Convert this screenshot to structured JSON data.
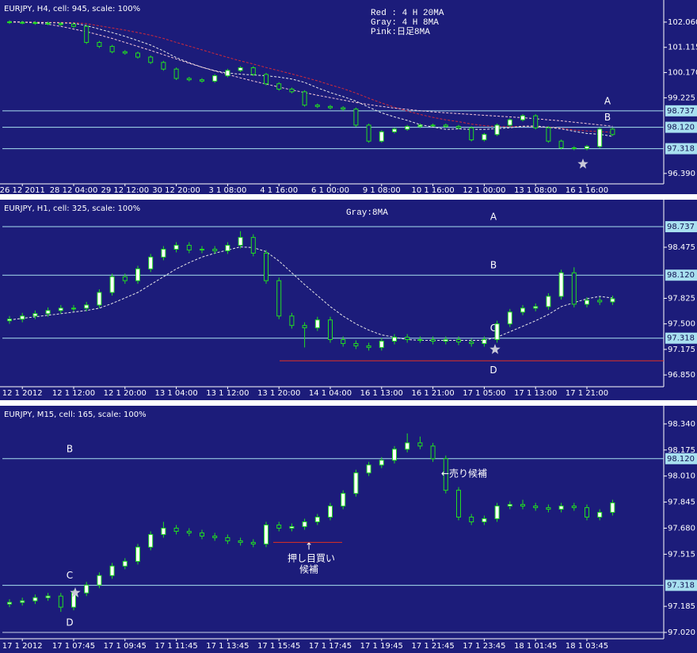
{
  "chart_data": [
    {
      "type": "candlestick",
      "title": "EURJPY, H4, cell: 945, scale: 100%",
      "background": "#1c1c7a",
      "up_color": "#ffffff",
      "down_color": "#1c1c7a",
      "wick_color": "#22dd22",
      "categories": [
        null,
        "26 12 2011",
        null,
        null,
        null,
        "28 12 04:00",
        null,
        null,
        null,
        "29 12 12:00",
        null,
        null,
        null,
        "30 12 20:00",
        null,
        null,
        null,
        "3 1 08:00",
        null,
        null,
        null,
        "4 1 16:00",
        null,
        null,
        null,
        "6 1 00:00",
        null,
        null,
        null,
        "9 1 08:00",
        null,
        null,
        null,
        "10 1 16:00",
        null,
        null,
        null,
        "12 1 00:00",
        null,
        null,
        null,
        "13 1 08:00",
        null,
        null,
        null,
        "16 1 16:00",
        null,
        null
      ],
      "open": [
        102.07,
        102.05,
        102.04,
        102.02,
        102.0,
        101.98,
        101.9,
        101.3,
        101.15,
        100.95,
        100.9,
        100.75,
        100.55,
        100.3,
        99.95,
        99.9,
        99.85,
        100.05,
        100.25,
        100.35,
        100.1,
        99.75,
        99.55,
        99.45,
        98.95,
        98.9,
        98.85,
        98.8,
        98.2,
        97.6,
        97.95,
        98.05,
        98.15,
        98.2,
        98.2,
        98.15,
        98.1,
        97.65,
        97.85,
        98.2,
        98.4,
        98.55,
        98.1,
        97.6,
        97.35,
        97.32,
        97.4,
        98.05
      ],
      "high": [
        102.13,
        102.11,
        102.1,
        102.08,
        102.06,
        102.04,
        101.96,
        101.36,
        101.21,
        101.01,
        100.96,
        100.81,
        100.61,
        100.36,
        100.01,
        99.96,
        100.11,
        100.31,
        100.41,
        100.41,
        100.16,
        99.81,
        99.61,
        99.51,
        99.01,
        98.96,
        98.91,
        98.86,
        98.26,
        98.01,
        98.11,
        98.21,
        98.26,
        98.26,
        98.26,
        98.21,
        98.16,
        97.91,
        98.26,
        98.46,
        98.61,
        98.61,
        98.16,
        97.66,
        97.41,
        97.46,
        98.11,
        98.11
      ],
      "low": [
        101.99,
        101.98,
        101.96,
        101.94,
        101.92,
        101.84,
        101.24,
        101.09,
        100.89,
        100.84,
        100.69,
        100.49,
        100.24,
        99.89,
        99.84,
        99.79,
        99.79,
        99.99,
        100.19,
        100.04,
        99.69,
        99.49,
        99.39,
        98.89,
        98.84,
        98.79,
        98.74,
        98.14,
        97.54,
        97.54,
        97.89,
        97.99,
        98.09,
        98.14,
        98.09,
        98.04,
        97.59,
        97.59,
        97.79,
        98.14,
        98.34,
        98.04,
        97.54,
        97.29,
        97.26,
        97.26,
        97.34,
        97.79
      ],
      "close": [
        102.05,
        102.04,
        102.02,
        102.0,
        101.98,
        101.9,
        101.3,
        101.15,
        100.95,
        100.9,
        100.75,
        100.55,
        100.3,
        99.95,
        99.9,
        99.85,
        100.05,
        100.25,
        100.35,
        100.1,
        99.75,
        99.55,
        99.45,
        98.95,
        98.9,
        98.85,
        98.8,
        98.2,
        97.6,
        97.95,
        98.05,
        98.15,
        98.2,
        98.2,
        98.15,
        98.1,
        97.65,
        97.85,
        98.2,
        98.4,
        98.55,
        98.1,
        97.6,
        97.35,
        97.32,
        97.4,
        98.05,
        97.85
      ],
      "series": [
        {
          "name": "Red : 4 H 20MA",
          "color": "#d02a3a",
          "values": [
            102.06,
            102.06,
            102.06,
            102.05,
            102.05,
            102.04,
            102.0,
            101.92,
            101.84,
            101.76,
            101.67,
            101.57,
            101.45,
            101.3,
            101.16,
            101.02,
            100.88,
            100.74,
            100.61,
            100.49,
            100.36,
            100.24,
            100.12,
            99.99,
            99.86,
            99.71,
            99.57,
            99.4,
            99.21,
            99.03,
            98.87,
            98.73,
            98.6,
            98.49,
            98.4,
            98.33,
            98.24,
            98.18,
            98.15,
            98.14,
            98.16,
            98.15,
            98.13,
            98.08,
            98.02,
            97.98,
            97.96,
            97.93
          ]
        },
        {
          "name": "Gray: 4 H  8MA",
          "color": "#e8e8e8",
          "values": [
            102.06,
            102.06,
            102.05,
            102.04,
            102.03,
            102.02,
            101.93,
            101.8,
            101.67,
            101.53,
            101.37,
            101.2,
            100.98,
            100.73,
            100.54,
            100.37,
            100.24,
            100.15,
            100.11,
            100.08,
            100.05,
            100.0,
            99.93,
            99.8,
            99.6,
            99.42,
            99.27,
            99.1,
            98.87,
            98.66,
            98.51,
            98.38,
            98.22,
            98.13,
            98.04,
            98.06,
            98.04,
            98.04,
            98.07,
            98.1,
            98.16,
            98.17,
            98.12,
            98.06,
            97.97,
            97.89,
            97.86,
            97.78
          ]
        },
        {
          "name": "Pink:日足8MA",
          "color": "#f4c8d8",
          "values": [
            102.08,
            102.06,
            102.03,
            101.98,
            101.9,
            101.8,
            101.7,
            101.58,
            101.45,
            101.3,
            101.15,
            101.0,
            100.84,
            100.68,
            100.52,
            100.37,
            100.23,
            100.1,
            99.97,
            99.85,
            99.74,
            99.63,
            99.52,
            99.42,
            99.32,
            99.23,
            99.14,
            99.05,
            98.97,
            98.9,
            98.84,
            98.79,
            98.74,
            98.7,
            98.66,
            98.63,
            98.6,
            98.57,
            98.54,
            98.51,
            98.48,
            98.44,
            98.4,
            98.36,
            98.31,
            98.26,
            98.21,
            98.16
          ]
        }
      ],
      "ylim": [
        96.0,
        102.8
      ],
      "yticks": [
        {
          "value": 102.06,
          "label": "102.060"
        },
        101.115,
        {
          "value": 100.17,
          "label": "100.170"
        },
        99.225,
        {
          "value": 96.39,
          "label": "96.390"
        }
      ],
      "levels": [
        {
          "value": 98.737,
          "name": "A",
          "color": "#a8e0f0",
          "boxed": true
        },
        {
          "value": 98.12,
          "label": "98.120",
          "name": "B",
          "color": "#a8e0f0",
          "boxed": true
        },
        {
          "value": 97.318,
          "color": "#a8e0f0",
          "boxed": true
        }
      ]
    },
    {
      "type": "candlestick",
      "title": "EURJPY, H1, cell: 325, scale: 100%",
      "background": "#1c1c7a",
      "up_color": "#ffffff",
      "down_color": "#1c1c7a",
      "wick_color": "#22dd22",
      "categories": [
        null,
        "12 1 2012",
        null,
        null,
        null,
        "12 1 12:00",
        null,
        null,
        null,
        "12 1 20:00",
        null,
        null,
        null,
        "13 1 04:00",
        null,
        null,
        null,
        "13 1 12:00",
        null,
        null,
        null,
        "13 1 20:00",
        null,
        null,
        null,
        "14 1 04:00",
        null,
        null,
        null,
        "16 1 13:00",
        null,
        null,
        null,
        "16 1 21:00",
        null,
        null,
        null,
        "17 1 05:00",
        null,
        null,
        null,
        "17 1 13:00",
        null,
        null,
        null,
        "17 1 21:00",
        null,
        null
      ],
      "open": [
        97.54,
        97.56,
        97.6,
        97.63,
        97.67,
        97.7,
        97.7,
        97.74,
        97.9,
        98.1,
        98.05,
        98.2,
        98.35,
        98.45,
        98.5,
        98.44,
        98.45,
        98.43,
        98.5,
        98.6,
        98.4,
        98.05,
        97.6,
        97.48,
        97.45,
        97.55,
        97.3,
        97.25,
        97.22,
        97.2,
        97.28,
        97.33,
        97.3,
        97.3,
        97.28,
        97.3,
        97.27,
        97.25,
        97.3,
        97.5,
        97.65,
        97.7,
        97.72,
        97.85,
        98.15,
        97.75,
        97.8,
        97.78
      ],
      "high": [
        97.6,
        97.64,
        97.67,
        97.71,
        97.74,
        97.74,
        97.78,
        97.94,
        98.14,
        98.14,
        98.24,
        98.39,
        98.49,
        98.54,
        98.54,
        98.49,
        98.49,
        98.54,
        98.68,
        98.64,
        98.44,
        98.09,
        97.64,
        97.52,
        97.59,
        97.59,
        97.34,
        97.29,
        97.26,
        97.32,
        97.37,
        97.37,
        97.34,
        97.34,
        97.34,
        97.34,
        97.31,
        97.34,
        97.54,
        97.69,
        97.74,
        97.76,
        97.89,
        98.19,
        98.22,
        97.84,
        97.84,
        97.86
      ],
      "low": [
        97.5,
        97.52,
        97.56,
        97.59,
        97.63,
        97.66,
        97.66,
        97.7,
        97.86,
        98.01,
        98.01,
        98.16,
        98.31,
        98.41,
        98.4,
        98.4,
        98.39,
        98.39,
        98.46,
        98.36,
        98.01,
        97.56,
        97.44,
        97.2,
        97.41,
        97.26,
        97.21,
        97.18,
        97.16,
        97.16,
        97.24,
        97.26,
        97.26,
        97.24,
        97.24,
        97.23,
        97.21,
        97.21,
        97.26,
        97.46,
        97.61,
        97.66,
        97.68,
        97.81,
        97.71,
        97.71,
        97.74,
        97.74
      ],
      "close": [
        97.56,
        97.6,
        97.63,
        97.67,
        97.7,
        97.7,
        97.74,
        97.9,
        98.1,
        98.05,
        98.2,
        98.35,
        98.45,
        98.5,
        98.44,
        98.45,
        98.43,
        98.5,
        98.6,
        98.4,
        98.05,
        97.6,
        97.48,
        97.45,
        97.55,
        97.3,
        97.25,
        97.22,
        97.2,
        97.28,
        97.33,
        97.3,
        97.3,
        97.28,
        97.3,
        97.27,
        97.25,
        97.3,
        97.5,
        97.65,
        97.7,
        97.72,
        97.85,
        98.15,
        97.75,
        97.8,
        97.78,
        97.82
      ],
      "series": [
        {
          "name": "Gray:8MA",
          "color": "#e8e8e8",
          "values": [
            97.55,
            97.57,
            97.59,
            97.61,
            97.63,
            97.65,
            97.67,
            97.7,
            97.76,
            97.83,
            97.9,
            98.0,
            98.1,
            98.2,
            98.28,
            98.35,
            98.4,
            98.44,
            98.48,
            98.47,
            98.42,
            98.3,
            98.15,
            98.0,
            97.86,
            97.72,
            97.6,
            97.5,
            97.42,
            97.36,
            97.33,
            97.3,
            97.29,
            97.29,
            97.29,
            97.29,
            97.29,
            97.29,
            97.33,
            97.4,
            97.47,
            97.54,
            97.62,
            97.72,
            97.77,
            97.82,
            97.85,
            97.83
          ]
        }
      ],
      "ylim": [
        96.7,
        99.04
      ],
      "yticks": [
        98.475,
        97.825,
        {
          "value": 97.5,
          "label": "97.500"
        },
        97.175,
        {
          "value": 96.85,
          "label": "96.850"
        }
      ],
      "levels": [
        {
          "value": 98.737,
          "name": "A",
          "color": "#a8e0f0",
          "boxed": true
        },
        {
          "value": 98.12,
          "label": "98.120",
          "name": "B",
          "color": "#a8e0f0",
          "boxed": true
        },
        {
          "value": 97.318,
          "name": "C",
          "color": "#a8e0f0",
          "boxed": true
        },
        {
          "value": 97.03,
          "name": "D",
          "color": "#e03020",
          "boxed": false
        }
      ]
    },
    {
      "type": "candlestick",
      "title": "EURJPY, M15, cell: 165, scale: 100%",
      "background": "#1c1c7a",
      "up_color": "#ffffff",
      "down_color": "#1c1c7a",
      "wick_color": "#22dd22",
      "categories": [
        null,
        "17 1 2012",
        null,
        null,
        null,
        "17 1 07:45",
        null,
        null,
        null,
        "17 1 09:45",
        null,
        null,
        null,
        "17 1 11:45",
        null,
        null,
        null,
        "17 1 13:45",
        null,
        null,
        null,
        "17 1 15:45",
        null,
        null,
        null,
        "17 1 17:45",
        null,
        null,
        null,
        "17 1 19:45",
        null,
        null,
        null,
        "17 1 21:45",
        null,
        null,
        null,
        "17 1 23:45",
        null,
        null,
        null,
        "18 1 01:45",
        null,
        null,
        null,
        "18 1 03:45",
        null,
        null
      ],
      "open": [
        97.2,
        97.21,
        97.22,
        97.24,
        97.25,
        97.18,
        97.27,
        97.32,
        97.38,
        97.44,
        97.47,
        97.56,
        97.64,
        97.68,
        97.66,
        97.65,
        97.63,
        97.62,
        97.6,
        97.59,
        97.58,
        97.7,
        97.68,
        97.69,
        97.72,
        97.75,
        97.82,
        97.9,
        98.03,
        98.08,
        98.11,
        98.18,
        98.22,
        98.2,
        98.12,
        97.92,
        97.75,
        97.72,
        97.74,
        97.82,
        97.83,
        97.82,
        97.81,
        97.8,
        97.82,
        97.81,
        97.75,
        97.78
      ],
      "high": [
        97.23,
        97.24,
        97.26,
        97.27,
        97.27,
        97.29,
        97.34,
        97.4,
        97.46,
        97.49,
        97.58,
        97.66,
        97.72,
        97.7,
        97.68,
        97.67,
        97.65,
        97.64,
        97.62,
        97.61,
        97.72,
        97.72,
        97.71,
        97.74,
        97.77,
        97.84,
        97.92,
        98.05,
        98.1,
        98.13,
        98.2,
        98.28,
        98.26,
        98.22,
        98.14,
        97.94,
        97.77,
        97.76,
        97.84,
        97.85,
        97.86,
        97.84,
        97.83,
        97.84,
        97.84,
        97.83,
        97.8,
        97.86
      ],
      "low": [
        97.18,
        97.19,
        97.2,
        97.22,
        97.15,
        97.16,
        97.25,
        97.3,
        97.36,
        97.42,
        97.45,
        97.54,
        97.62,
        97.64,
        97.63,
        97.61,
        97.6,
        97.58,
        97.57,
        97.56,
        97.56,
        97.66,
        97.66,
        97.67,
        97.7,
        97.73,
        97.8,
        97.88,
        98.01,
        98.06,
        98.09,
        98.16,
        98.18,
        98.1,
        97.9,
        97.73,
        97.7,
        97.7,
        97.72,
        97.8,
        97.8,
        97.79,
        97.78,
        97.78,
        97.79,
        97.73,
        97.73,
        97.76
      ],
      "close": [
        97.21,
        97.22,
        97.24,
        97.25,
        97.18,
        97.27,
        97.32,
        97.38,
        97.44,
        97.47,
        97.56,
        97.64,
        97.68,
        97.66,
        97.65,
        97.63,
        97.62,
        97.6,
        97.59,
        97.58,
        97.7,
        97.68,
        97.69,
        97.72,
        97.75,
        97.82,
        97.9,
        98.03,
        98.08,
        98.11,
        98.18,
        98.22,
        98.2,
        98.12,
        97.92,
        97.75,
        97.72,
        97.74,
        97.82,
        97.83,
        97.82,
        97.81,
        97.8,
        97.82,
        97.81,
        97.75,
        97.78,
        97.84
      ],
      "series": [],
      "ylim": [
        96.98,
        98.435
      ],
      "yticks": [
        {
          "value": 98.34,
          "label": "98.340"
        },
        98.175,
        {
          "value": 98.01,
          "label": "98.010"
        },
        97.845,
        {
          "value": 97.68,
          "label": "97.680"
        },
        97.515,
        97.185,
        {
          "value": 97.02,
          "label": "97.020"
        }
      ],
      "levels": [
        {
          "value": 98.12,
          "label": "98.120",
          "name": "B",
          "color": "#a8e0f0",
          "boxed": true
        },
        {
          "value": 97.318,
          "name": "C",
          "color": "#a8e0f0",
          "boxed": true
        },
        {
          "value": 97.02,
          "name": "D",
          "color": "#c8d0e8",
          "boxed": false
        },
        {
          "value": 97.59,
          "color": "#e03020",
          "boxed": false
        }
      ],
      "annotations": [
        "←売り候補",
        "↑",
        "押し目買い",
        "候補"
      ]
    }
  ]
}
